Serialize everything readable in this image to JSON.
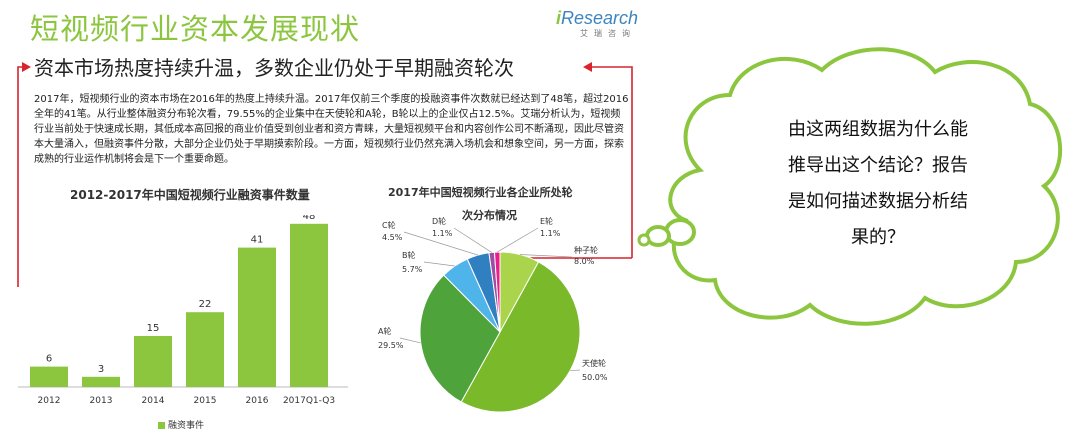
{
  "header": {
    "title": "短视频行业资本发展现状",
    "subtitle": "资本市场热度持续升温，多数企业仍处于早期融资轮次",
    "logo_main": "Research",
    "logo_prefix": "i",
    "logo_sub": "艾瑞咨询"
  },
  "paragraph": "2017年，短视频行业的资本市场在2016年的热度上持续升温。2017年仅前三个季度的投融资事件次数就已经达到了48笔，超过2016全年的41笔。从行业整体融资分布轮次看，79.55%的企业集中在天使轮和A轮，B轮以上的企业仅占12.5%。艾瑞分析认为，短视频行业当前处于快速成长期，其低成本高回报的商业价值受到创业者和资方青睐，大量短视频平台和内容创作公司不断涌现，因此尽管资本大量涌入，但融资事件分散，大部分企业仍处于早期摸索阶段。一方面，短视频行业仍然充满入场机会和想象空间，另一方面，探索成熟的行业运作机制将会是下一个重要命题。",
  "bubble": {
    "lines": [
      "由这两组数据为什么能",
      "推导出这个结论？报告",
      "是如何描述数据分析结",
      "果的？"
    ]
  },
  "colors": {
    "accent_green": "#8cc63f",
    "arrow_red": "#d9232d",
    "bubble_border": "#8cc63f"
  },
  "chart_data": [
    {
      "type": "bar",
      "title": "2012-2017年中国短视频行业融资事件数量",
      "categories": [
        "2012",
        "2013",
        "2014",
        "2015",
        "2016",
        "2017Q1-Q3"
      ],
      "series": [
        {
          "name": "融资事件",
          "values": [
            6,
            3,
            15,
            22,
            41,
            48
          ]
        }
      ],
      "ylim": [
        0,
        50
      ],
      "grid": false,
      "legend": "bottom-left",
      "color": "#8cc63f"
    },
    {
      "type": "pie",
      "title": "2017年中国短视频行业各企业所处轮次分布情况",
      "title_lines": [
        "2017年中国短视频行业各企业所处轮",
        "次分布情况"
      ],
      "slices": [
        {
          "label": "种子轮",
          "value": "8.0%",
          "pct": 8.0,
          "color": "#a9d44c"
        },
        {
          "label": "天使轮",
          "value": "50.0%",
          "pct": 50.0,
          "color": "#7ab929"
        },
        {
          "label": "A轮",
          "value": "29.5%",
          "pct": 29.5,
          "color": "#4ea43a"
        },
        {
          "label": "B轮",
          "value": "5.7%",
          "pct": 5.7,
          "color": "#4fb4e9"
        },
        {
          "label": "C轮",
          "value": "4.5%",
          "pct": 4.5,
          "color": "#2f7fc1"
        },
        {
          "label": "D轮",
          "value": "1.1%",
          "pct": 1.1,
          "color": "#9b4fa4"
        },
        {
          "label": "E轮",
          "value": "1.1%",
          "pct": 1.1,
          "color": "#e91e8c"
        }
      ]
    }
  ]
}
